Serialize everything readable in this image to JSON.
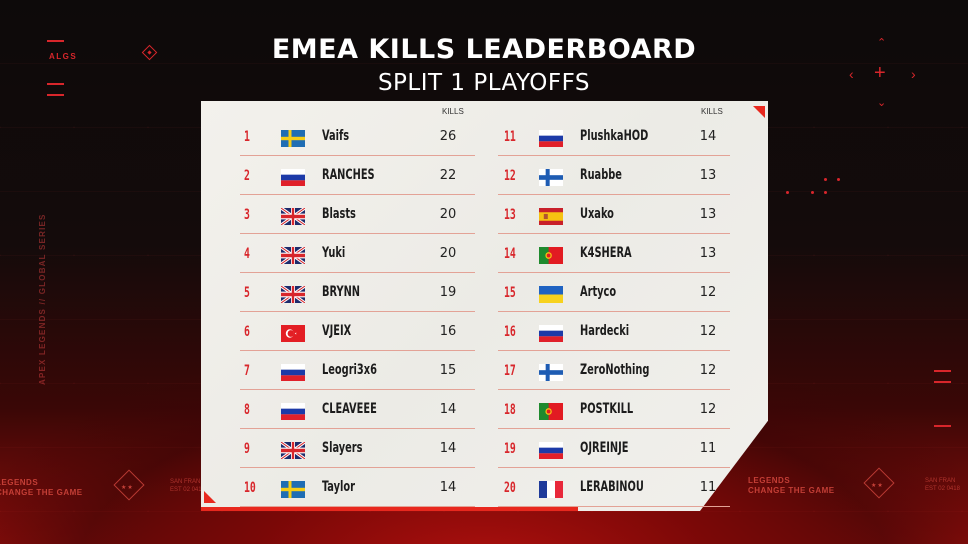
{
  "header": {
    "title": "EMEA KILLS LEADERBOARD",
    "subtitle": "SPLIT 1 PLAYOFFS"
  },
  "branding": {
    "top_left_tag": "ALGS",
    "vertical_text": "APEX LEGENDS // GLOBAL SERIES",
    "footer_left_line1": "LEGENDS",
    "footer_left_line2": "CHANGE THE GAME",
    "footer_right_line1": "LEGENDS",
    "footer_right_line2": "CHANGE THE GAME",
    "footer_city": "SAN FRAN",
    "footer_code": "EST 02 0418",
    "emblem_stars": "★★"
  },
  "colors": {
    "accent": "#e8281e",
    "rank": "#d8262b",
    "panel_bg": "#f1f0ec",
    "divider": "#e3a296"
  },
  "table": {
    "kills_header": "KILLS",
    "left": [
      {
        "rank": "1",
        "flag": "sweden",
        "player": "Vaifs",
        "kills": "26"
      },
      {
        "rank": "2",
        "flag": "russia",
        "player": "RANCHES",
        "kills": "22"
      },
      {
        "rank": "3",
        "flag": "uk",
        "player": "Blasts",
        "kills": "20"
      },
      {
        "rank": "4",
        "flag": "uk",
        "player": "Yuki",
        "kills": "20"
      },
      {
        "rank": "5",
        "flag": "uk",
        "player": "BRYNN",
        "kills": "19"
      },
      {
        "rank": "6",
        "flag": "turkey",
        "player": "VJEIX",
        "kills": "16"
      },
      {
        "rank": "7",
        "flag": "russia",
        "player": "Leogri3x6",
        "kills": "15"
      },
      {
        "rank": "8",
        "flag": "russia",
        "player": "CLEAVEEE",
        "kills": "14"
      },
      {
        "rank": "9",
        "flag": "uk",
        "player": "Slayers",
        "kills": "14"
      },
      {
        "rank": "10",
        "flag": "sweden",
        "player": "Taylor",
        "kills": "14"
      }
    ],
    "right": [
      {
        "rank": "11",
        "flag": "russia",
        "player": "PlushkaHOD",
        "kills": "14"
      },
      {
        "rank": "12",
        "flag": "finland",
        "player": "Ruabbe",
        "kills": "13"
      },
      {
        "rank": "13",
        "flag": "spain",
        "player": "Uxako",
        "kills": "13"
      },
      {
        "rank": "14",
        "flag": "portugal",
        "player": "K4SHERA",
        "kills": "13"
      },
      {
        "rank": "15",
        "flag": "ukraine",
        "player": "Artyco",
        "kills": "12"
      },
      {
        "rank": "16",
        "flag": "russia",
        "player": "Hardecki",
        "kills": "12"
      },
      {
        "rank": "17",
        "flag": "finland",
        "player": "ZeroNothing",
        "kills": "12"
      },
      {
        "rank": "18",
        "flag": "portugal",
        "player": "POSTKILL",
        "kills": "12"
      },
      {
        "rank": "19",
        "flag": "russia",
        "player": "OJREINJE",
        "kills": "11"
      },
      {
        "rank": "20",
        "flag": "france",
        "player": "LERABINOU",
        "kills": "11"
      }
    ]
  }
}
